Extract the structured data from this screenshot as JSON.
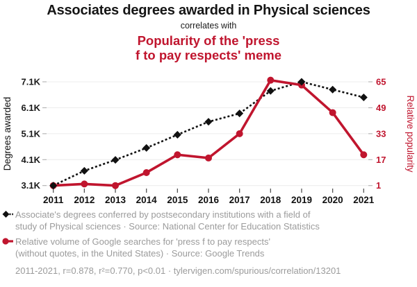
{
  "header": {
    "title": "Associates degrees awarded in Physical sciences",
    "connector": "correlates with",
    "subtitle": "Popularity of the 'press\nf to pay respects' meme"
  },
  "colors": {
    "accent_red": "#c0152e",
    "series_black": "#111111",
    "muted_text": "#9b9b9b",
    "gridline": "#ececec"
  },
  "chart_data": {
    "type": "line",
    "x": [
      2011,
      2012,
      2013,
      2014,
      2015,
      2016,
      2017,
      2018,
      2019,
      2020,
      2021
    ],
    "series": [
      {
        "name": "Associates degrees awarded in Physical sciences",
        "axis": "left",
        "color": "#111111",
        "marker": "diamond",
        "line": "dotted",
        "values": [
          3100,
          3670,
          4090,
          4550,
          5060,
          5560,
          5880,
          6750,
          7100,
          6800,
          6500
        ]
      },
      {
        "name": "Popularity of the 'press f to pay respects' meme",
        "axis": "right",
        "color": "#c0152e",
        "marker": "circle",
        "line": "solid",
        "values": [
          1,
          2,
          1,
          9,
          20,
          18,
          33,
          66,
          63,
          46,
          20
        ]
      }
    ],
    "left_axis": {
      "label": "Degrees awarded",
      "ticks": [
        3100,
        4100,
        5100,
        6100,
        7100
      ],
      "tick_labels": [
        "3.1K",
        "4.1K",
        "5.1K",
        "6.1K",
        "7.1K"
      ],
      "range": [
        3100,
        7100
      ]
    },
    "right_axis": {
      "label": "Relative popularity",
      "ticks": [
        1,
        17,
        33,
        49,
        65
      ],
      "tick_labels": [
        "1",
        "17",
        "33",
        "49",
        "65"
      ],
      "range": [
        1,
        65
      ]
    },
    "grid": true,
    "legend_position": "bottom"
  },
  "legend": {
    "series1": {
      "line1": "Associate's degrees conferred by postsecondary institutions with a field of",
      "line2": "study of Physical sciences · Source: National Center for Education Statistics"
    },
    "series2": {
      "line1": "Relative volume of Google searches for 'press f to pay respects'",
      "line2": "(without quotes, in the United States) · Source: Google Trends"
    },
    "footer": "2011-2021, r=0.878, r²=0.770, p<0.01 · tylervigen.com/spurious/correlation/13201"
  }
}
